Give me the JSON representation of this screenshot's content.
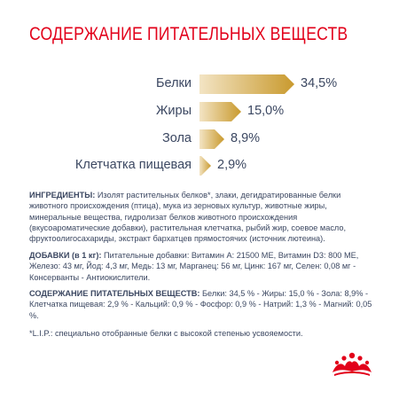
{
  "title": "СОДЕРЖАНИЕ ПИТАТЕЛЬНЫХ ВЕЩЕСТВ",
  "nutrients": [
    {
      "label": "Белки",
      "value": "34,5%",
      "percent": 34.5
    },
    {
      "label": "Жиры",
      "value": "15,0%",
      "percent": 15.0
    },
    {
      "label": "Зола",
      "value": "8,9%",
      "percent": 8.9
    },
    {
      "label": "Клетчатка пищевая",
      "value": "2,9%",
      "percent": 2.9
    }
  ],
  "ingredients": {
    "heading": "ИНГРЕДИЕНТЫ:",
    "text": " Изолят растительных белков*, злаки, дегидратированные белки животного происхождения (птица), мука из зерновых культур, животные жиры, минеральные вещества, гидролизат белков животного происхождения (вкусоароматические добавки), растительная клетчатка, рыбий жир, соевое масло, фруктоолигосахариды, экстракт бархатцев прямостоячих (источник лютеина)."
  },
  "additives": {
    "heading": "ДОБАВКИ (в 1 кг):",
    "text": " Питательные добавки: Витамин А: 21500 МЕ, Витамин D3: 800 МЕ, Железо: 43 мг, Йод: 4,3 мг, Медь: 13 мг, Марганец: 56 мг, Цинк: 167 мг, Селен: 0,08 мг - Консерванты - Антиокислители."
  },
  "composition": {
    "heading": "СОДЕРЖАНИЕ ПИТАТЕЛЬНЫХ ВЕЩЕСТВ:",
    "text": " Белки: 34,5 % - Жиры: 15,0 % - Зола: 8,9% - Клетчатка пищевая: 2,9 % - Кальций: 0,9 % - Фосфор: 0,9 % - Натрий: 1,3 % - Магний: 0,05 %."
  },
  "footnote": "*L.I.P.: специально отобранные белки с высокой степенью усвояемости.",
  "colors": {
    "accent": "#e2001a",
    "text": "#3b4761",
    "arrow_start": "#f3e4c4",
    "arrow_end": "#c99a2e"
  },
  "logo_icon": "royal-canin-crown-icon"
}
